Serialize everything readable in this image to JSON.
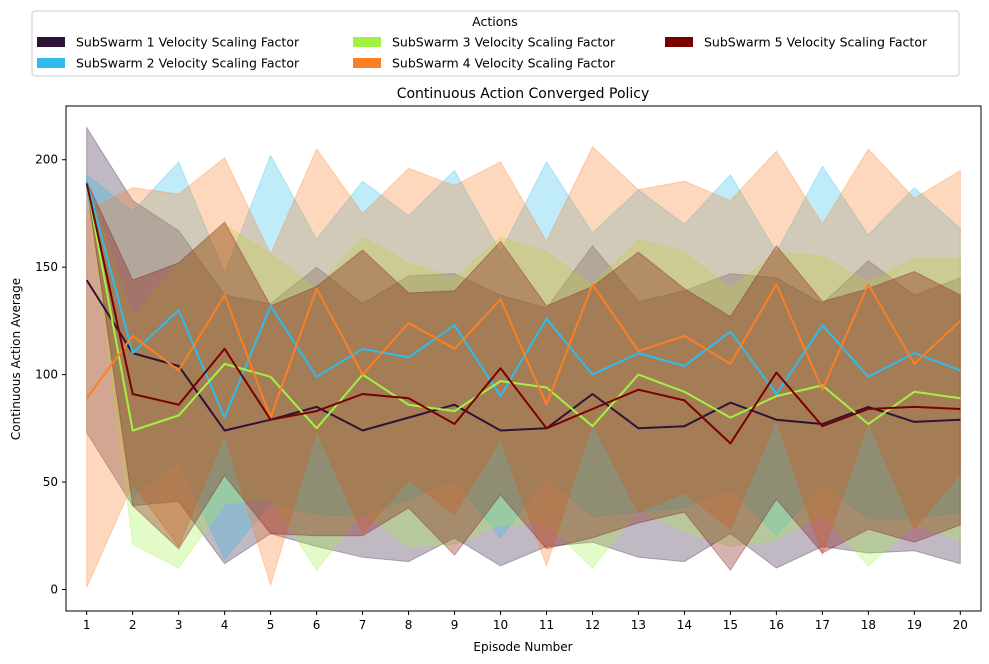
{
  "chart_data": {
    "type": "line",
    "title": "Continuous Action Converged Policy",
    "xlabel": "Episode Number",
    "ylabel": "Continuous Action Average",
    "xlim": [
      0.55,
      20.45
    ],
    "ylim": [
      -10,
      225
    ],
    "x": [
      1,
      2,
      3,
      4,
      5,
      6,
      7,
      8,
      9,
      10,
      11,
      12,
      13,
      14,
      15,
      16,
      17,
      18,
      19,
      20
    ],
    "yticks": [
      0,
      50,
      100,
      150,
      200
    ],
    "legend": {
      "title": "Actions",
      "placement": "top-center",
      "columns": 3
    },
    "grid": false,
    "series": [
      {
        "name": "SubSwarm 1 Velocity Scaling Factor",
        "color": "#2e1338",
        "values": [
          144,
          110,
          104,
          74,
          79,
          85,
          74,
          80,
          86,
          74,
          75,
          91,
          75,
          76,
          87,
          79,
          77,
          85,
          78,
          79
        ],
        "upper": [
          215,
          181,
          167,
          137,
          133,
          150,
          133,
          146,
          147,
          137,
          131,
          160,
          134,
          139,
          147,
          145,
          133,
          153,
          137,
          145
        ],
        "lower": [
          73,
          39,
          41,
          12,
          26,
          20,
          15,
          13,
          24,
          11,
          20,
          22,
          15,
          13,
          26,
          10,
          20,
          17,
          18,
          12
        ]
      },
      {
        "name": "SubSwarm 2 Velocity Scaling Factor",
        "color": "#2fbcec",
        "values": [
          190,
          110,
          130,
          80,
          132,
          99,
          112,
          108,
          123,
          90,
          126,
          100,
          110,
          104,
          120,
          91,
          123,
          99,
          110,
          102
        ],
        "upper": [
          193,
          176,
          199,
          147,
          202,
          163,
          190,
          174,
          195,
          157,
          199,
          166,
          186,
          170,
          193,
          157,
          197,
          165,
          187,
          168
        ],
        "lower": [
          187,
          44,
          60,
          14,
          40,
          35,
          34,
          42,
          51,
          24,
          52,
          34,
          36,
          38,
          47,
          25,
          49,
          33,
          33,
          36
        ]
      },
      {
        "name": "SubSwarm 3 Velocity Scaling Factor",
        "color": "#a2f241",
        "values": [
          189,
          74,
          81,
          105,
          99,
          75,
          100,
          86,
          83,
          97,
          94,
          76,
          100,
          92,
          80,
          90,
          95,
          77,
          92,
          89
        ],
        "upper": [
          190,
          127,
          152,
          170,
          156,
          140,
          164,
          152,
          145,
          164,
          157,
          142,
          163,
          157,
          140,
          157,
          155,
          143,
          154,
          154
        ],
        "lower": [
          188,
          21,
          10,
          40,
          42,
          9,
          36,
          20,
          21,
          30,
          31,
          10,
          37,
          27,
          20,
          23,
          35,
          11,
          30,
          23
        ]
      },
      {
        "name": "SubSwarm 4 Velocity Scaling Factor",
        "color": "#fb7f24",
        "values": [
          89,
          118,
          102,
          137,
          80,
          140,
          100,
          124,
          112,
          135,
          86,
          142,
          111,
          118,
          105,
          142,
          93,
          142,
          105,
          125
        ],
        "upper": [
          176,
          187,
          184,
          201,
          156,
          205,
          175,
          196,
          188,
          199,
          162,
          206,
          186,
          190,
          181,
          204,
          170,
          205,
          182,
          195
        ],
        "lower": [
          1,
          49,
          20,
          72,
          2,
          74,
          26,
          51,
          35,
          70,
          11,
          77,
          36,
          45,
          28,
          79,
          16,
          78,
          28,
          54
        ]
      },
      {
        "name": "SubSwarm 5 Velocity Scaling Factor",
        "color": "#7a0000",
        "values": [
          189,
          91,
          86,
          112,
          79,
          83,
          91,
          89,
          77,
          103,
          75,
          84,
          93,
          88,
          68,
          101,
          76,
          84,
          85,
          84
        ],
        "upper": [
          190,
          144,
          152,
          171,
          132,
          141,
          158,
          138,
          139,
          162,
          132,
          141,
          157,
          140,
          127,
          160,
          134,
          140,
          148,
          137
        ],
        "lower": [
          188,
          39,
          19,
          53,
          26,
          25,
          25,
          38,
          16,
          44,
          19,
          24,
          31,
          36,
          9,
          42,
          17,
          28,
          22,
          30
        ]
      }
    ]
  }
}
